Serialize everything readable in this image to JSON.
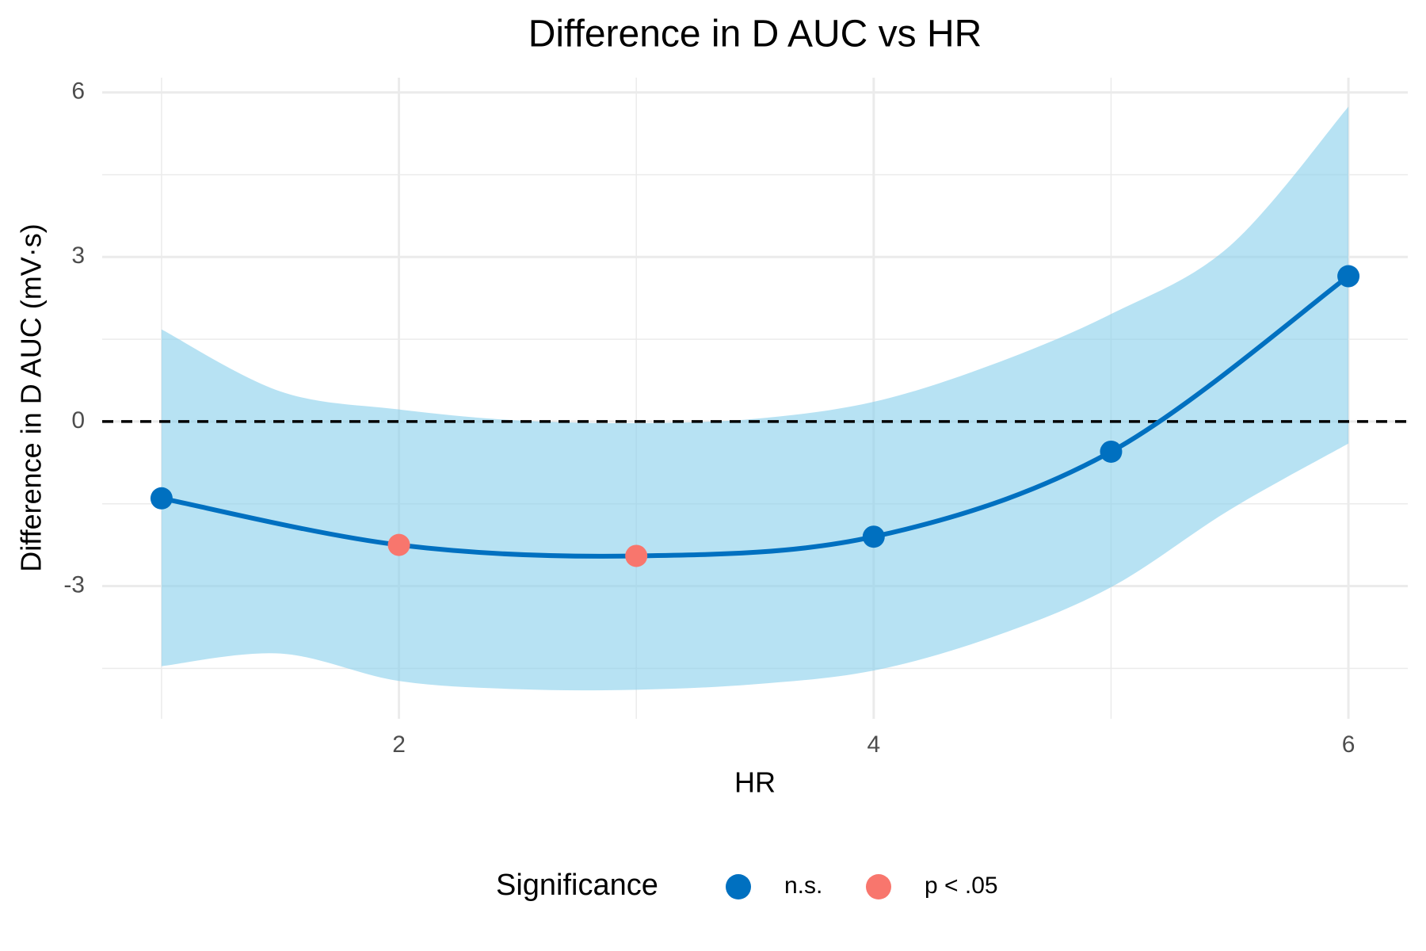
{
  "chart_data": {
    "type": "line",
    "title": "Difference in D AUC vs HR",
    "x_label": "HR",
    "y_label": "Difference in D AUC (mV·s)",
    "x": [
      1,
      2,
      3,
      4,
      5,
      6
    ],
    "values": [
      -1.4,
      -2.25,
      -2.45,
      -2.1,
      -0.55,
      2.65
    ],
    "significance": [
      "n.s.",
      "p < .05",
      "p < .05",
      "n.s.",
      "n.s.",
      "n.s."
    ],
    "line_color": "#0070C0",
    "band": {
      "x": [
        1,
        1.5,
        2,
        2.5,
        3,
        3.5,
        4,
        4.5,
        5,
        5.5,
        6
      ],
      "upper": [
        1.68,
        0.55,
        0.22,
        0.02,
        -0.03,
        0.05,
        0.36,
        1.04,
        1.96,
        3.2,
        5.74
      ],
      "lower": [
        -4.46,
        -4.23,
        -4.73,
        -4.88,
        -4.89,
        -4.79,
        -4.54,
        -3.93,
        -3.02,
        -1.61,
        -0.4
      ],
      "color": "#87CEEB"
    },
    "reference_line": 0,
    "legend": {
      "title": "Significance",
      "position": "bottom",
      "items": [
        {
          "name": "n.s.",
          "color": "#0070C0"
        },
        {
          "name": "p < .05",
          "color": "#F8766D"
        }
      ]
    },
    "xlim": [
      0.75,
      6.25
    ],
    "ylim": [
      -5.42,
      6.27
    ],
    "xticks": [
      2,
      4,
      6
    ],
    "yticks": [
      -3,
      0,
      3,
      6
    ],
    "x_minor_ticks": [
      1,
      3,
      5
    ],
    "y_minor_ticks": [
      -4.5,
      -1.5,
      1.5,
      4.5
    ],
    "grid": true
  }
}
